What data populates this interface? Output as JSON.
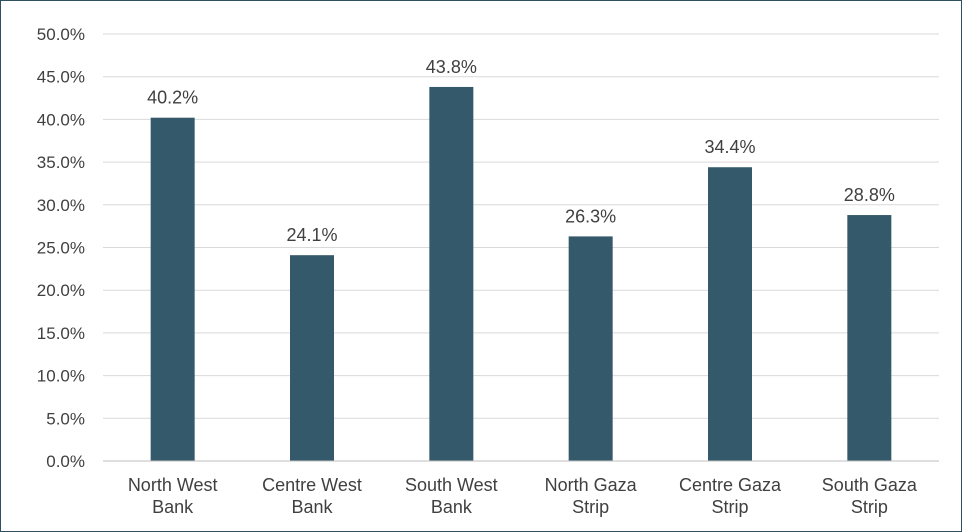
{
  "chart_data": {
    "type": "bar",
    "categories": [
      [
        "North West",
        "Bank"
      ],
      [
        "Centre West",
        "Bank"
      ],
      [
        "South West",
        "Bank"
      ],
      [
        "North Gaza",
        "Strip"
      ],
      [
        "Centre Gaza",
        "Strip"
      ],
      [
        "South Gaza",
        "Strip"
      ]
    ],
    "values": [
      40.2,
      24.1,
      43.8,
      26.3,
      34.4,
      28.8
    ],
    "data_labels": [
      "40.2%",
      "24.1%",
      "43.8%",
      "26.3%",
      "34.4%",
      "28.8%"
    ],
    "y_ticks": [
      0,
      5,
      10,
      15,
      20,
      25,
      30,
      35,
      40,
      45,
      50
    ],
    "y_tick_labels": [
      "0.0%",
      "5.0%",
      "10.0%",
      "15.0%",
      "20.0%",
      "25.0%",
      "30.0%",
      "35.0%",
      "40.0%",
      "45.0%",
      "50.0%"
    ],
    "ylim": [
      0,
      50
    ],
    "grid": true,
    "legend": "none",
    "bar_color": "#34596a",
    "title": "",
    "xlabel": "",
    "ylabel": ""
  }
}
